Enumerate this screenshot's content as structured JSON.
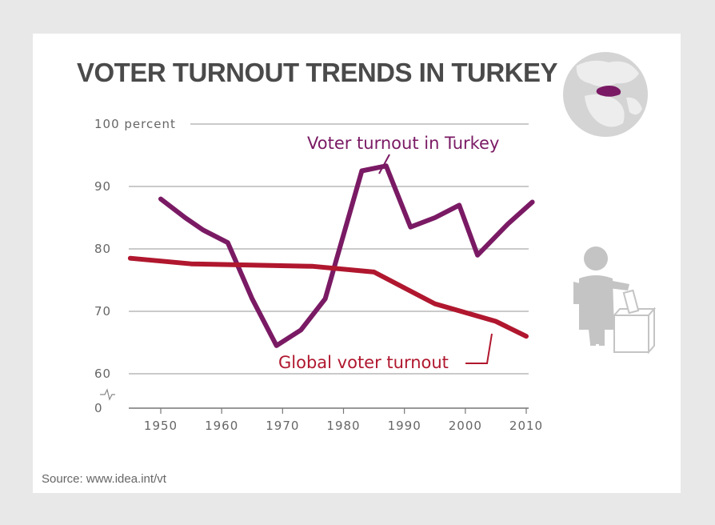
{
  "chart_data": {
    "type": "line",
    "title": "VOTER TURNOUT TRENDS IN TURKEY",
    "source": "Source: www.idea.int/vt",
    "xlabel": "",
    "ylabel": "",
    "xlim": [
      1945,
      2010
    ],
    "ylim": [
      60,
      100
    ],
    "x_ticks": [
      "1950",
      "1960",
      "1970",
      "1980",
      "1990",
      "2000",
      "2010"
    ],
    "y_ticks": [
      "100 percent",
      "90",
      "80",
      "70",
      "60",
      "0"
    ],
    "axis_break": true,
    "grid": true,
    "series": [
      {
        "name": "Voter turnout in Turkey",
        "color": "#7a1a64",
        "x": [
          1950,
          1954,
          1957,
          1961,
          1965,
          1969,
          1973,
          1977,
          1983,
          1987,
          1991,
          1995,
          1999,
          2002,
          2007,
          2011
        ],
        "y": [
          88,
          85,
          83,
          81,
          72,
          64.5,
          67,
          72,
          92.5,
          93.3,
          83.5,
          85,
          87,
          79,
          84,
          87.5
        ]
      },
      {
        "name": "Global voter turnout",
        "color": "#b0172e",
        "x": [
          1945,
          1955,
          1965,
          1975,
          1985,
          1995,
          2005,
          2010
        ],
        "y": [
          78.5,
          77.6,
          77.4,
          77.2,
          76.3,
          71.2,
          68.4,
          66
        ]
      }
    ],
    "annotations": [
      "Voter turnout in Turkey",
      "Global voter turnout"
    ]
  },
  "icons": {
    "globe": "globe-icon",
    "voter": "voter-ballot-box-icon"
  },
  "colors": {
    "turkey": "#7a1a64",
    "global": "#b0172e",
    "grid": "#aaaaaa",
    "icon_gray": "#c4c4c4"
  }
}
